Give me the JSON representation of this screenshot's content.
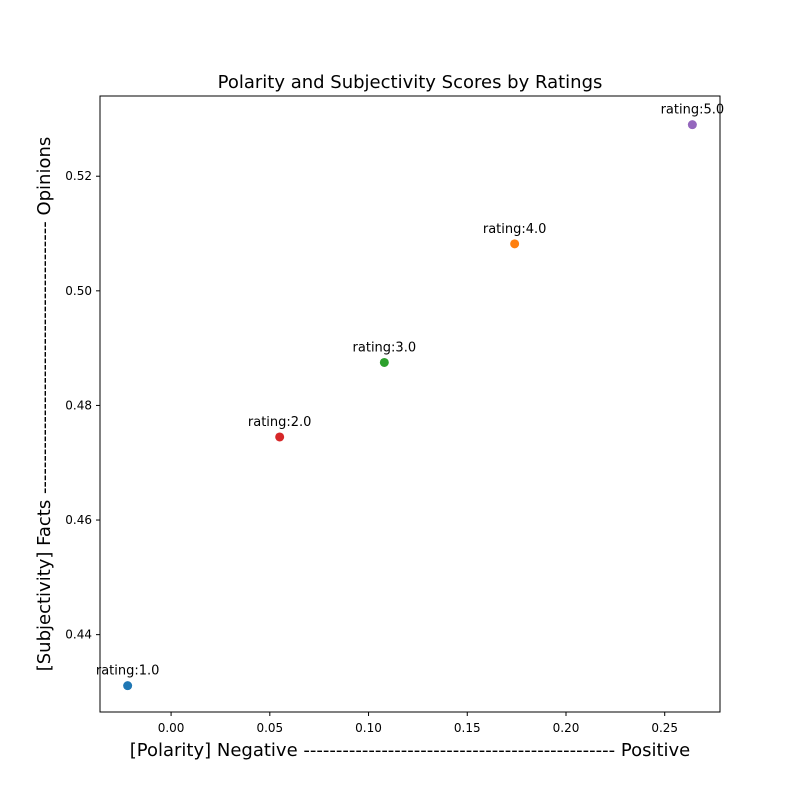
{
  "chart_data": {
    "type": "scatter",
    "title": "Polarity and Subjectivity Scores by Ratings",
    "xlabel": "[Polarity] Negative ------------------------------------------------ Positive",
    "ylabel": "[Subjectivity] Facts ------------------------------------------ Opinions",
    "xlim": [
      -0.036,
      0.278
    ],
    "ylim": [
      0.4265,
      0.534
    ],
    "grid": false,
    "x_ticks": [
      0.0,
      0.05,
      0.1,
      0.15,
      0.2,
      0.25
    ],
    "x_tick_labels": [
      "0.00",
      "0.05",
      "0.10",
      "0.15",
      "0.20",
      "0.25"
    ],
    "y_ticks": [
      0.44,
      0.46,
      0.48,
      0.5,
      0.52
    ],
    "y_tick_labels": [
      "0.44",
      "0.46",
      "0.48",
      "0.50",
      "0.52"
    ],
    "points": [
      {
        "label": "rating:1.0",
        "x": -0.022,
        "y": 0.4311,
        "color": "#1f77b4"
      },
      {
        "label": "rating:2.0",
        "x": 0.055,
        "y": 0.4745,
        "color": "#d62728"
      },
      {
        "label": "rating:3.0",
        "x": 0.108,
        "y": 0.4875,
        "color": "#2ca02c"
      },
      {
        "label": "rating:4.0",
        "x": 0.174,
        "y": 0.5082,
        "color": "#ff7f0e"
      },
      {
        "label": "rating:5.0",
        "x": 0.264,
        "y": 0.529,
        "color": "#9467bd"
      }
    ]
  }
}
